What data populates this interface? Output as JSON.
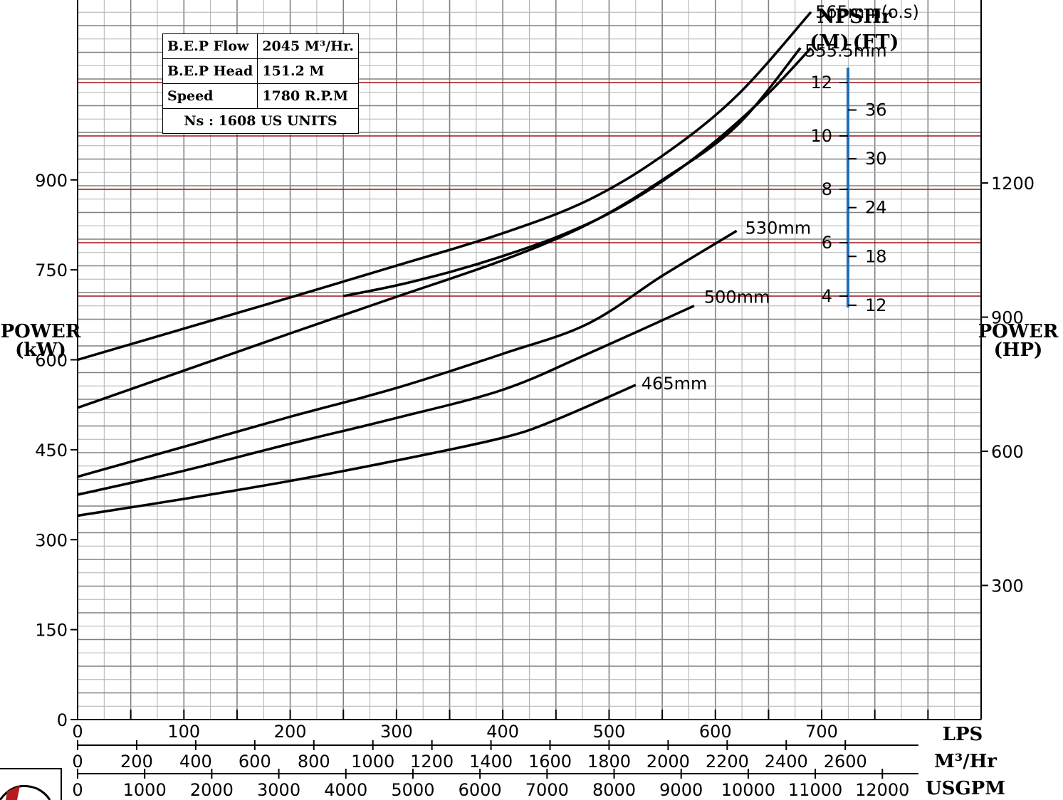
{
  "bep_table": {
    "rows": [
      {
        "label": "B.E.P Flow",
        "value": "2045 M³/Hr."
      },
      {
        "label": "B.E.P Head",
        "value": "151.2  M"
      },
      {
        "label": "Speed",
        "value": "1780  R.P.M"
      }
    ],
    "ns": "Ns  :  1608  US  UNITS"
  },
  "colors": {
    "grid_minor": "#b0b0b0",
    "grid_major": "#808080",
    "npsh_grid": "#a01010",
    "npsh_axis": "#1f6fb2",
    "curve": "#000000"
  },
  "chart_data": {
    "type": "line",
    "x_axes": {
      "lps": {
        "label": "LPS",
        "range": [
          0,
          850
        ],
        "ticks": [
          0,
          100,
          200,
          300,
          400,
          500,
          600,
          700
        ]
      },
      "m3hr": {
        "label": "M³/Hr",
        "ticks": [
          0,
          200,
          400,
          600,
          800,
          1000,
          1200,
          1400,
          1600,
          1800,
          2000,
          2200,
          2400,
          2600
        ]
      },
      "usgpm": {
        "label": "USGPM",
        "ticks": [
          0,
          1000,
          2000,
          3000,
          4000,
          5000,
          6000,
          7000,
          8000,
          9000,
          10000,
          11000,
          12000
        ]
      }
    },
    "power_axis_kw": {
      "label": "POWER\n(kW)",
      "range": [
        0,
        1200
      ],
      "ticks": [
        0,
        150,
        300,
        450,
        600,
        750,
        900
      ]
    },
    "power_axis_hp": {
      "label": "POWER\n(HP)",
      "ticks": [
        300,
        600,
        900,
        1200
      ]
    },
    "npsh_axis": {
      "title": "NPSHr",
      "m_label": "(M)",
      "ft_label": "(FT)",
      "m_ticks": [
        4,
        6,
        8,
        10,
        12
      ],
      "ft_ticks": [
        12,
        18,
        24,
        30,
        36
      ],
      "range_m": [
        4,
        12.5
      ]
    },
    "npsh_curve": {
      "x": [
        250,
        300,
        350,
        400,
        450,
        500,
        550,
        600,
        650,
        690
      ],
      "y": [
        4.0,
        4.4,
        4.9,
        5.5,
        6.2,
        7.1,
        8.3,
        9.8,
        11.6,
        13.3
      ]
    },
    "power_curves": [
      {
        "name": "565mm(o.s)",
        "x": [
          0,
          100,
          200,
          300,
          400,
          480,
          550,
          620,
          690
        ],
        "y": [
          600,
          652,
          704,
          757,
          811,
          866,
          940,
          1040,
          1180
        ]
      },
      {
        "name": "555.5mm",
        "x": [
          0,
          100,
          200,
          300,
          400,
          480,
          550,
          620,
          680
        ],
        "y": [
          520,
          582,
          644,
          705,
          766,
          826,
          900,
          990,
          1120
        ]
      },
      {
        "name": "530mm",
        "x": [
          0,
          100,
          200,
          300,
          400,
          480,
          550,
          620
        ],
        "y": [
          405,
          455,
          505,
          553,
          610,
          660,
          740,
          815
        ]
      },
      {
        "name": "500mm",
        "x": [
          0,
          100,
          200,
          300,
          400,
          480,
          580
        ],
        "y": [
          375,
          415,
          460,
          503,
          550,
          610,
          690
        ]
      },
      {
        "name": "465mm",
        "x": [
          0,
          100,
          200,
          300,
          400,
          450,
          525
        ],
        "y": [
          340,
          368,
          398,
          432,
          470,
          500,
          558
        ]
      }
    ]
  }
}
